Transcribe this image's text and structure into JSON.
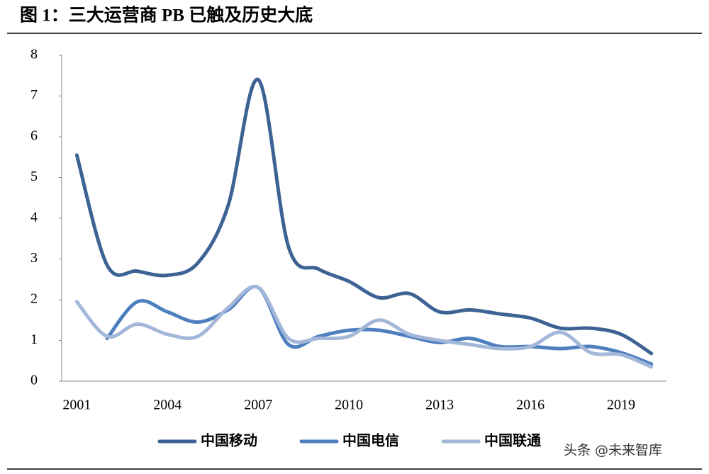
{
  "chart_data": {
    "type": "line",
    "title": "图 1：三大运营商 PB 已触及历史大底",
    "watermark": "头条 @未来智库",
    "categories": [
      "2001",
      null,
      null,
      "2004",
      null,
      null,
      "2007",
      null,
      null,
      "2010",
      null,
      null,
      "2013",
      null,
      null,
      "2016",
      null,
      null,
      "2019",
      null
    ],
    "series": [
      {
        "name": "中国移动",
        "color": "#3d6394",
        "values": [
          5.55,
          2.85,
          2.7,
          2.6,
          2.9,
          4.3,
          7.4,
          3.3,
          2.75,
          2.45,
          2.05,
          2.15,
          1.7,
          1.75,
          1.65,
          1.55,
          1.3,
          1.3,
          1.15,
          0.68
        ]
      },
      {
        "name": "中国电信",
        "color": "#4e7fbf",
        "values": [
          null,
          1.05,
          1.95,
          1.7,
          1.45,
          1.75,
          2.3,
          0.9,
          1.1,
          1.25,
          1.25,
          1.1,
          0.95,
          1.05,
          0.85,
          0.85,
          0.8,
          0.85,
          0.7,
          0.42
        ]
      },
      {
        "name": "中国联通",
        "color": "#a3b7d8",
        "values": [
          1.95,
          1.1,
          1.4,
          1.15,
          1.1,
          1.8,
          2.3,
          1.05,
          1.05,
          1.1,
          1.5,
          1.15,
          1.0,
          0.9,
          0.8,
          0.85,
          1.2,
          0.7,
          0.65,
          0.35
        ]
      }
    ],
    "ylim": [
      0,
      8
    ],
    "yticks": [
      0,
      1,
      2,
      3,
      4,
      5,
      6,
      7,
      8
    ]
  }
}
